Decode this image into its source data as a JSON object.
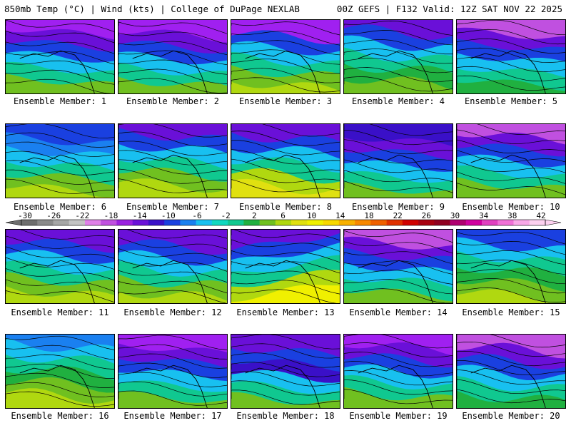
{
  "header": {
    "left": "850mb Temp (°C) | Wind (kts) | College of DuPage NEXLAB",
    "right": "00Z GEFS | F132 Valid: 12Z SAT NOV 22 2025"
  },
  "colorbar": {
    "ticks": [
      "-30",
      "-26",
      "-22",
      "-18",
      "-14",
      "-10",
      "-6",
      "-2",
      "2",
      "6",
      "10",
      "14",
      "18",
      "22",
      "26",
      "30",
      "34",
      "38",
      "42"
    ],
    "colors": [
      "#6e6e6e",
      "#8a8a8a",
      "#a6a6a6",
      "#c3c3c3",
      "#e080e8",
      "#c050e0",
      "#9a20e0",
      "#6a10d8",
      "#3a10c8",
      "#1a40e0",
      "#1a80f0",
      "#18c0f0",
      "#10d8c0",
      "#10c890",
      "#20b040",
      "#70c020",
      "#b0d810",
      "#e0e010",
      "#f0f000",
      "#f8d800",
      "#f8b000",
      "#f88800",
      "#f06000",
      "#e03000",
      "#d00000",
      "#a80010",
      "#900020",
      "#b00070",
      "#d000a0",
      "#e040c0",
      "#f070d8",
      "#f8a8e8",
      "#fcd0f0"
    ]
  },
  "members": [
    {
      "label": "Ensemble Member: 1"
    },
    {
      "label": "Ensemble Member: 2"
    },
    {
      "label": "Ensemble Member: 3"
    },
    {
      "label": "Ensemble Member: 4"
    },
    {
      "label": "Ensemble Member: 5"
    },
    {
      "label": "Ensemble Member: 6"
    },
    {
      "label": "Ensemble Member: 7"
    },
    {
      "label": "Ensemble Member: 8"
    },
    {
      "label": "Ensemble Member: 9"
    },
    {
      "label": "Ensemble Member: 10"
    },
    {
      "label": "Ensemble Member: 11"
    },
    {
      "label": "Ensemble Member: 12"
    },
    {
      "label": "Ensemble Member: 13"
    },
    {
      "label": "Ensemble Member: 14"
    },
    {
      "label": "Ensemble Member: 15"
    },
    {
      "label": "Ensemble Member: 16"
    },
    {
      "label": "Ensemble Member: 17"
    },
    {
      "label": "Ensemble Member: 18"
    },
    {
      "label": "Ensemble Member: 19"
    },
    {
      "label": "Ensemble Member: 20"
    }
  ]
}
